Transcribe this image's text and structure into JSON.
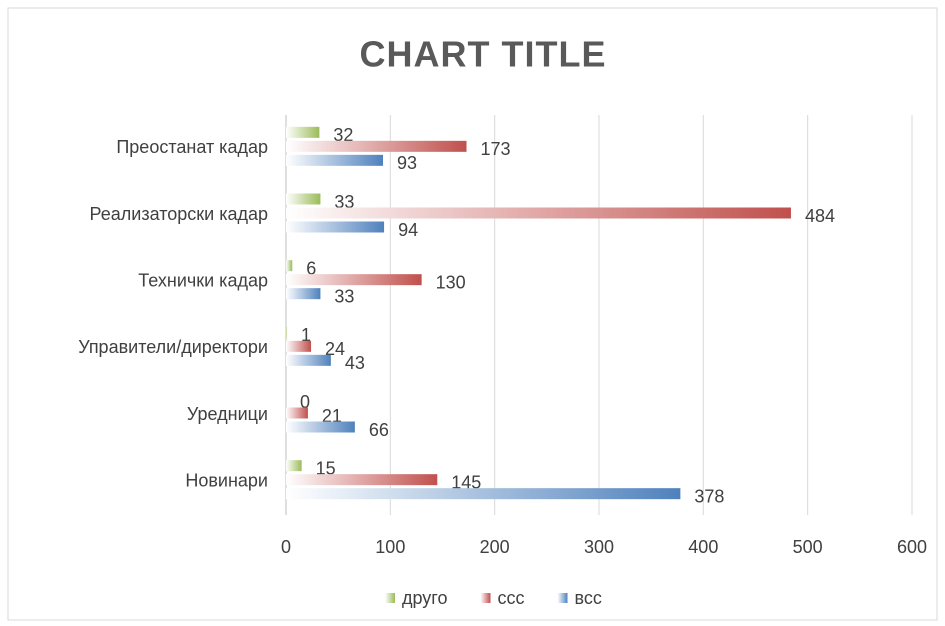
{
  "chart_data": {
    "type": "hbar",
    "title": "CHART TITLE",
    "categories": [
      "Новинари",
      "Уредници",
      "Управители/директори",
      "Технички кадар",
      "Реализаторски кадар",
      "Преостанат кадар"
    ],
    "series": [
      {
        "name": "друго",
        "color": "#9bbb59",
        "values": [
          15,
          0,
          1,
          6,
          33,
          32
        ]
      },
      {
        "name": "ссс",
        "color": "#c0504d",
        "values": [
          145,
          21,
          24,
          130,
          484,
          173
        ]
      },
      {
        "name": "всс",
        "color": "#4f81bd",
        "values": [
          378,
          66,
          43,
          33,
          94,
          93
        ]
      }
    ],
    "xlim": [
      0,
      600
    ],
    "xticks": [
      0,
      100,
      200,
      300,
      400,
      500,
      600
    ],
    "grid": true,
    "legend": "bottom"
  }
}
